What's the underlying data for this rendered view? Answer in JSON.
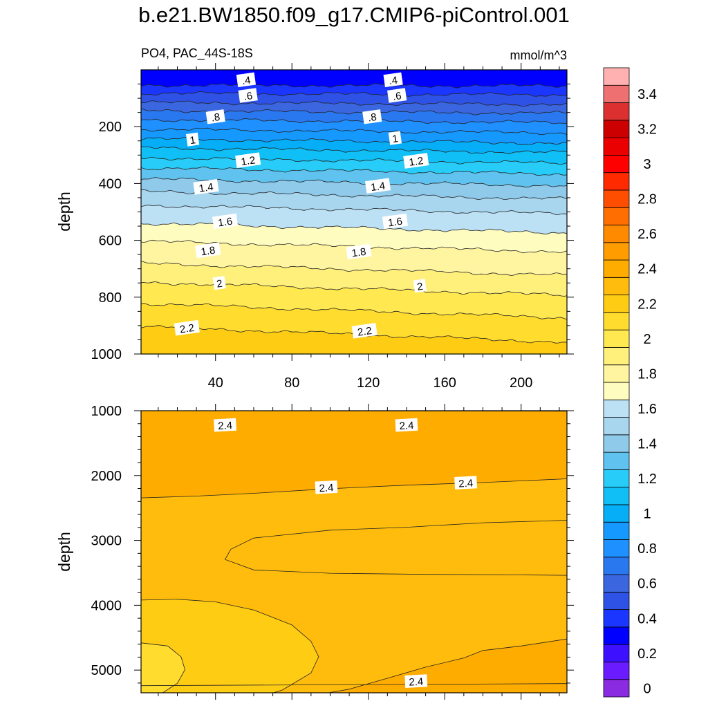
{
  "figure": {
    "title": "b.e21.BW1850.f09_g17.CMIP6-piControl.001",
    "left_subtitle": "PO4, PAC_44S-18S",
    "right_subtitle": "mmol/m^3"
  },
  "colorbar": {
    "levels": [
      0,
      0.1,
      0.2,
      0.3,
      0.4,
      0.5,
      0.6,
      0.7,
      0.8,
      0.9,
      1,
      1.1,
      1.2,
      1.3,
      1.4,
      1.5,
      1.6,
      1.7,
      1.8,
      1.9,
      2,
      2.1,
      2.2,
      2.3,
      2.4,
      2.5,
      2.6,
      2.7,
      2.8,
      2.9,
      3,
      3.1,
      3.2,
      3.3,
      3.4,
      3.5
    ],
    "label_values": [
      0,
      0.2,
      0.4,
      0.6,
      0.8,
      1,
      1.2,
      1.4,
      1.6,
      1.8,
      2,
      2.2,
      2.4,
      2.6,
      2.8,
      3,
      3.2,
      3.4
    ],
    "tick_labels": [
      "0",
      "0.2",
      "0.4",
      "0.6",
      "0.8",
      "1",
      "1.2",
      "1.4",
      "1.6",
      "1.8",
      "2",
      "2.2",
      "2.4",
      "2.6",
      "2.8",
      "3",
      "3.2",
      "3.4"
    ],
    "colors": [
      "#8a2be2",
      "#6a1bff",
      "#3d10ff",
      "#0000ff",
      "#1a36ff",
      "#2f52e6",
      "#3a66e0",
      "#2a78f0",
      "#1e90ff",
      "#1599ff",
      "#05aef7",
      "#10bff5",
      "#28ccf8",
      "#60c2ee",
      "#8fcaeb",
      "#a9d6ef",
      "#bde1f4",
      "#fffcc0",
      "#fff5a0",
      "#fff07c",
      "#ffe850",
      "#ffdc2e",
      "#ffcc14",
      "#ffbc0c",
      "#ffac00",
      "#ff9c00",
      "#ff8a00",
      "#ff6e00",
      "#ff4e00",
      "#ff2a00",
      "#ff0000",
      "#ea0000",
      "#cc0000",
      "#dc3030",
      "#ee7070",
      "#ffb0b0"
    ]
  },
  "chart_data": [
    {
      "type": "contour",
      "panel": "upper",
      "ylabel": "depth",
      "xlim": [
        1,
        224
      ],
      "ylim": [
        1000,
        0
      ],
      "xticks": [
        40,
        80,
        120,
        160,
        200
      ],
      "xtick_labels": [
        "40",
        "80",
        "120",
        "160",
        "200"
      ],
      "yticks": [
        200,
        400,
        600,
        800,
        1000
      ],
      "ytick_labels": [
        "200",
        "400",
        "600",
        "800",
        "1000"
      ],
      "contour_interval": 0.1,
      "depth_of_level": [
        {
          "value": 0.4,
          "depth": 55
        },
        {
          "value": 0.5,
          "depth": 85
        },
        {
          "value": 0.6,
          "depth": 118
        },
        {
          "value": 0.7,
          "depth": 148
        },
        {
          "value": 0.8,
          "depth": 180
        },
        {
          "value": 0.9,
          "depth": 215
        },
        {
          "value": 1.0,
          "depth": 250
        },
        {
          "value": 1.1,
          "depth": 282
        },
        {
          "value": 1.2,
          "depth": 318
        },
        {
          "value": 1.3,
          "depth": 355
        },
        {
          "value": 1.4,
          "depth": 395
        },
        {
          "value": 1.5,
          "depth": 440
        },
        {
          "value": 1.6,
          "depth": 490
        },
        {
          "value": 1.7,
          "depth": 555
        },
        {
          "value": 1.8,
          "depth": 620
        },
        {
          "value": 1.9,
          "depth": 700
        },
        {
          "value": 2.0,
          "depth": 768
        },
        {
          "value": 2.1,
          "depth": 845
        },
        {
          "value": 2.2,
          "depth": 928
        }
      ],
      "line_labels": [
        {
          "text": ".4",
          "x": 56,
          "depth": 35
        },
        {
          "text": ".4",
          "x": 133,
          "depth": 35
        },
        {
          "text": ".6",
          "x": 57,
          "depth": 90
        },
        {
          "text": ".6",
          "x": 135,
          "depth": 90
        },
        {
          "text": ".8",
          "x": 40,
          "depth": 165
        },
        {
          "text": ".8",
          "x": 122,
          "depth": 165
        },
        {
          "text": "1",
          "x": 28,
          "depth": 245
        },
        {
          "text": "1",
          "x": 134,
          "depth": 240
        },
        {
          "text": "1.2",
          "x": 57,
          "depth": 318
        },
        {
          "text": "1.2",
          "x": 145,
          "depth": 320
        },
        {
          "text": "1.4",
          "x": 35,
          "depth": 412
        },
        {
          "text": "1.4",
          "x": 125,
          "depth": 408
        },
        {
          "text": "1.6",
          "x": 45,
          "depth": 533
        },
        {
          "text": "1.6",
          "x": 134,
          "depth": 533
        },
        {
          "text": "1.8",
          "x": 36,
          "depth": 635
        },
        {
          "text": "1.8",
          "x": 115,
          "depth": 640
        },
        {
          "text": "2",
          "x": 42,
          "depth": 750
        },
        {
          "text": "2",
          "x": 147,
          "depth": 760
        },
        {
          "text": "2.2",
          "x": 25,
          "depth": 908
        },
        {
          "text": "2.2",
          "x": 118,
          "depth": 918
        }
      ]
    },
    {
      "type": "contour",
      "panel": "lower",
      "ylabel": "depth",
      "xlim": [
        1,
        224
      ],
      "ylim": [
        5350,
        1000
      ],
      "xticks": [
        40,
        80,
        120,
        160,
        200
      ],
      "yticks": [
        1000,
        2000,
        3000,
        4000,
        5000
      ],
      "ytick_labels": [
        "1000",
        "2000",
        "3000",
        "4000",
        "5000"
      ],
      "regions": [
        {
          "value_range": "2.4-2.5",
          "description": "band between 1000 m and about 2000 m contours (depth rises toward east)"
        },
        {
          "value_range": "2.3-2.4",
          "description": "tongue centred near 3000 m extending from x=45 eastward"
        },
        {
          "value_range": "2.2-2.3",
          "description": "bottom-west bowl below about 3900 m"
        },
        {
          "value_range": "2.1-2.2",
          "description": "small pocket at west edge near 5000 m"
        },
        {
          "value_range": "2.4-2.5",
          "description": "bottom-east area below about 4700 m"
        }
      ],
      "line_labels": [
        {
          "text": "2.4",
          "x": 45,
          "depth": 1220
        },
        {
          "text": "2.4",
          "x": 140,
          "depth": 1220
        },
        {
          "text": "2.4",
          "x": 98,
          "depth": 2180
        },
        {
          "text": "2.4",
          "x": 171,
          "depth": 2110
        },
        {
          "text": "2.4",
          "x": 145,
          "depth": 5170
        }
      ]
    }
  ]
}
